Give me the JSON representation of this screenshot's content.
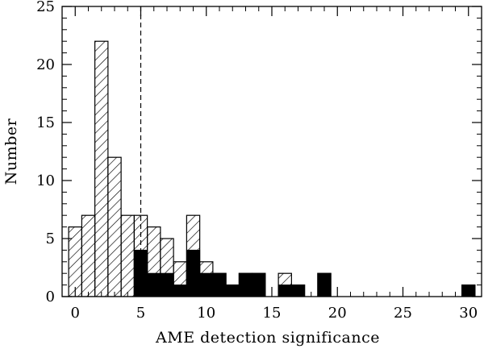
{
  "chart_data": {
    "type": "bar",
    "subtype": "stepped-histogram",
    "xlabel": "AME detection significance",
    "ylabel": "Number",
    "xlim": [
      -1,
      31
    ],
    "ylim": [
      0,
      25
    ],
    "xticks": [
      0,
      5,
      10,
      15,
      20,
      25,
      30
    ],
    "yticks": [
      0,
      5,
      10,
      15,
      20,
      25
    ],
    "bin_width": 1,
    "threshold_line": {
      "x": 5,
      "style": "dashed"
    },
    "series": [
      {
        "fill": "hatched",
        "bins": [
          {
            "x0": -0.5,
            "x1": 0.5,
            "value": 6
          },
          {
            "x0": 0.5,
            "x1": 1.5,
            "value": 7
          },
          {
            "x0": 1.5,
            "x1": 2.5,
            "value": 22
          },
          {
            "x0": 2.5,
            "x1": 3.5,
            "value": 12
          },
          {
            "x0": 3.5,
            "x1": 4.5,
            "value": 7
          },
          {
            "x0": 4.5,
            "x1": 5.5,
            "value": 7
          },
          {
            "x0": 5.5,
            "x1": 6.5,
            "value": 6
          },
          {
            "x0": 6.5,
            "x1": 7.5,
            "value": 5
          },
          {
            "x0": 7.5,
            "x1": 8.5,
            "value": 3
          },
          {
            "x0": 8.5,
            "x1": 9.5,
            "value": 7
          },
          {
            "x0": 9.5,
            "x1": 10.5,
            "value": 3
          },
          {
            "x0": 10.5,
            "x1": 11.5,
            "value": 2
          },
          {
            "x0": 11.5,
            "x1": 12.5,
            "value": 1
          },
          {
            "x0": 12.5,
            "x1": 13.5,
            "value": 2
          },
          {
            "x0": 13.5,
            "x1": 14.5,
            "value": 2
          },
          {
            "x0": 14.5,
            "x1": 15.5,
            "value": 0
          },
          {
            "x0": 15.5,
            "x1": 16.5,
            "value": 2
          },
          {
            "x0": 16.5,
            "x1": 17.5,
            "value": 1
          },
          {
            "x0": 18.5,
            "x1": 19.5,
            "value": 2
          },
          {
            "x0": 29.5,
            "x1": 30.5,
            "value": 1
          }
        ]
      },
      {
        "fill": "solid",
        "color": "#000000",
        "bins": [
          {
            "x0": 4.5,
            "x1": 5.5,
            "value": 4
          },
          {
            "x0": 5.5,
            "x1": 6.5,
            "value": 2
          },
          {
            "x0": 6.5,
            "x1": 7.5,
            "value": 2
          },
          {
            "x0": 7.5,
            "x1": 8.5,
            "value": 1
          },
          {
            "x0": 8.5,
            "x1": 9.5,
            "value": 4
          },
          {
            "x0": 9.5,
            "x1": 10.5,
            "value": 2
          },
          {
            "x0": 10.5,
            "x1": 11.5,
            "value": 2
          },
          {
            "x0": 11.5,
            "x1": 12.5,
            "value": 1
          },
          {
            "x0": 12.5,
            "x1": 13.5,
            "value": 2
          },
          {
            "x0": 13.5,
            "x1": 14.5,
            "value": 2
          },
          {
            "x0": 15.5,
            "x1": 16.5,
            "value": 1
          },
          {
            "x0": 16.5,
            "x1": 17.5,
            "value": 1
          },
          {
            "x0": 18.5,
            "x1": 19.5,
            "value": 2
          },
          {
            "x0": 29.5,
            "x1": 30.5,
            "value": 1
          }
        ]
      }
    ]
  }
}
